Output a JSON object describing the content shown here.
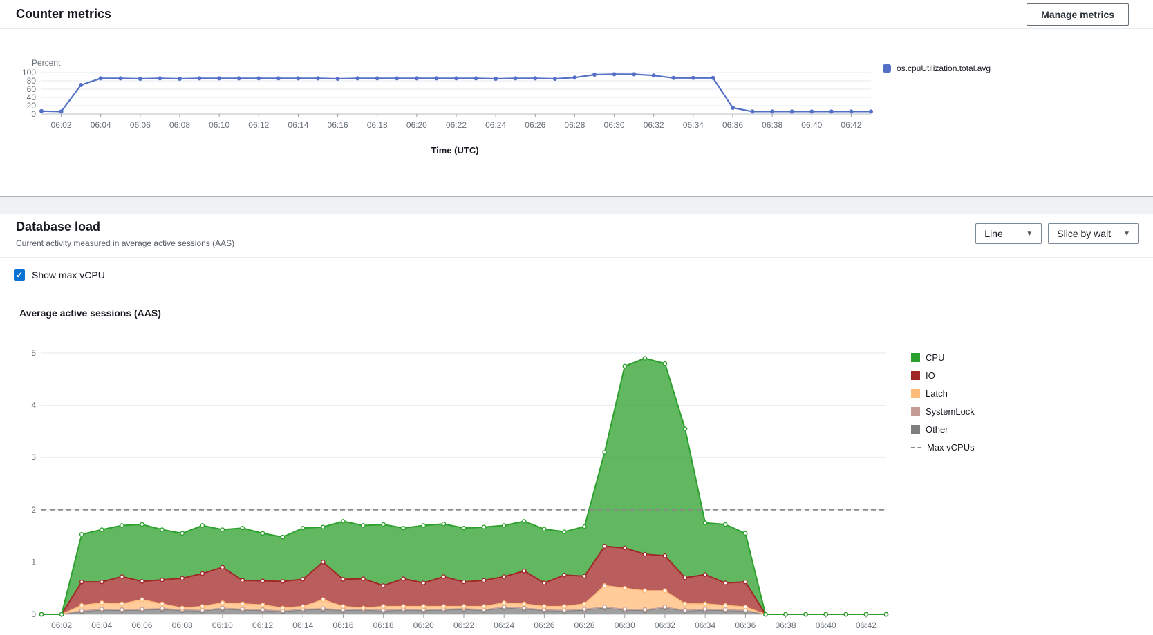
{
  "header": {
    "title": "Counter metrics",
    "manage_button": "Manage metrics"
  },
  "counter_chart": {
    "ylabel": "Percent",
    "xaxis_title": "Time (UTC)",
    "legend": [
      {
        "label": "os.cpuUtilization.total.avg",
        "color": "#5470c6"
      }
    ]
  },
  "database_load": {
    "title": "Database load",
    "subtitle": "Current activity measured in average active sessions (AAS)",
    "line_dropdown": "Line",
    "slice_dropdown": "Slice by wait",
    "show_max_vcpu_label": "Show max vCPU",
    "chart_title": "Average active sessions (AAS)"
  },
  "chart_data": [
    {
      "type": "line",
      "title": "Counter metrics",
      "ylabel": "Percent",
      "xlabel": "Time (UTC)",
      "ylim": [
        0,
        100
      ],
      "yticks": [
        0,
        20,
        40,
        60,
        80,
        100
      ],
      "grid": true,
      "legend_position": "right",
      "x": [
        "06:01",
        "06:02",
        "06:03",
        "06:04",
        "06:05",
        "06:06",
        "06:07",
        "06:08",
        "06:09",
        "06:10",
        "06:11",
        "06:12",
        "06:13",
        "06:14",
        "06:15",
        "06:16",
        "06:17",
        "06:18",
        "06:19",
        "06:20",
        "06:21",
        "06:22",
        "06:23",
        "06:24",
        "06:25",
        "06:26",
        "06:27",
        "06:28",
        "06:29",
        "06:30",
        "06:31",
        "06:32",
        "06:33",
        "06:34",
        "06:35",
        "06:36",
        "06:37",
        "06:38",
        "06:39",
        "06:40",
        "06:41",
        "06:42",
        "06:43"
      ],
      "xticks": [
        "06:02",
        "06:04",
        "06:06",
        "06:08",
        "06:10",
        "06:12",
        "06:14",
        "06:16",
        "06:18",
        "06:20",
        "06:22",
        "06:24",
        "06:26",
        "06:28",
        "06:30",
        "06:32",
        "06:34",
        "06:36",
        "06:38",
        "06:40",
        "06:42"
      ],
      "series": [
        {
          "name": "os.cpuUtilization.total.avg",
          "color": "#5470c6",
          "values": [
            7,
            6,
            70,
            86,
            86,
            85,
            86,
            85,
            86,
            86,
            86,
            86,
            86,
            86,
            86,
            85,
            86,
            86,
            86,
            86,
            86,
            86,
            86,
            85,
            86,
            86,
            85,
            88,
            95,
            96,
            96,
            93,
            87,
            87,
            87,
            15,
            6,
            6,
            6,
            6,
            6,
            6,
            6
          ]
        }
      ]
    },
    {
      "type": "area",
      "stacked": true,
      "title": "Average active sessions (AAS)",
      "ylabel": "",
      "xlabel": "",
      "ylim": [
        0,
        5
      ],
      "yticks": [
        0,
        1,
        2,
        3,
        4,
        5
      ],
      "grid": true,
      "legend_position": "right",
      "x": [
        "06:01",
        "06:02",
        "06:03",
        "06:04",
        "06:05",
        "06:06",
        "06:07",
        "06:08",
        "06:09",
        "06:10",
        "06:11",
        "06:12",
        "06:13",
        "06:14",
        "06:15",
        "06:16",
        "06:17",
        "06:18",
        "06:19",
        "06:20",
        "06:21",
        "06:22",
        "06:23",
        "06:24",
        "06:25",
        "06:26",
        "06:27",
        "06:28",
        "06:29",
        "06:30",
        "06:31",
        "06:32",
        "06:33",
        "06:34",
        "06:35",
        "06:36",
        "06:37",
        "06:38",
        "06:39",
        "06:40",
        "06:41",
        "06:42",
        "06:43"
      ],
      "xticks": [
        "06:02",
        "06:04",
        "06:06",
        "06:08",
        "06:10",
        "06:12",
        "06:14",
        "06:16",
        "06:18",
        "06:20",
        "06:22",
        "06:24",
        "06:26",
        "06:28",
        "06:30",
        "06:32",
        "06:34",
        "06:36",
        "06:38",
        "06:40",
        "06:42"
      ],
      "series": [
        {
          "name": "Other",
          "color": "#7f7f7f",
          "stroke_width": 1,
          "values": [
            0,
            0,
            0.05,
            0.08,
            0.07,
            0.08,
            0.09,
            0.07,
            0.06,
            0.1,
            0.08,
            0.07,
            0.05,
            0.08,
            0.09,
            0.07,
            0.08,
            0.06,
            0.08,
            0.07,
            0.08,
            0.09,
            0.07,
            0.12,
            0.1,
            0.07,
            0.06,
            0.08,
            0.12,
            0.08,
            0.07,
            0.12,
            0.06,
            0.08,
            0.07,
            0.06,
            0,
            0,
            0,
            0,
            0,
            0,
            0
          ]
        },
        {
          "name": "SystemLock",
          "color": "#c49c94",
          "stroke_width": 1,
          "values": [
            0,
            0,
            0.02,
            0.02,
            0.02,
            0.02,
            0.02,
            0.02,
            0.02,
            0.02,
            0.02,
            0.02,
            0.02,
            0.02,
            0.02,
            0.02,
            0.02,
            0.02,
            0.02,
            0.02,
            0.02,
            0.02,
            0.02,
            0.02,
            0.02,
            0.02,
            0.02,
            0.02,
            0.02,
            0.02,
            0.02,
            0.02,
            0.02,
            0.02,
            0.02,
            0.02,
            0,
            0,
            0,
            0,
            0,
            0,
            0
          ]
        },
        {
          "name": "Latch",
          "color": "#ffbb78",
          "stroke_width": 1.5,
          "values": [
            0,
            0,
            0.1,
            0.12,
            0.11,
            0.18,
            0.09,
            0.03,
            0.07,
            0.1,
            0.1,
            0.09,
            0.05,
            0.05,
            0.17,
            0.06,
            0.02,
            0.07,
            0.05,
            0.06,
            0.05,
            0.04,
            0.06,
            0.08,
            0.08,
            0.06,
            0.07,
            0.1,
            0.41,
            0.4,
            0.36,
            0.31,
            0.12,
            0.1,
            0.08,
            0.06,
            0,
            0,
            0,
            0,
            0,
            0,
            0
          ]
        },
        {
          "name": "IO",
          "color": "#a12727",
          "stroke_width": 2,
          "values": [
            0,
            0,
            0.45,
            0.4,
            0.52,
            0.35,
            0.46,
            0.57,
            0.63,
            0.68,
            0.45,
            0.46,
            0.51,
            0.52,
            0.72,
            0.52,
            0.56,
            0.4,
            0.53,
            0.45,
            0.57,
            0.47,
            0.5,
            0.5,
            0.63,
            0.45,
            0.6,
            0.53,
            0.75,
            0.77,
            0.7,
            0.67,
            0.5,
            0.56,
            0.43,
            0.48,
            0,
            0,
            0,
            0,
            0,
            0,
            0
          ]
        },
        {
          "name": "CPU",
          "color": "#2ca02c",
          "stroke_width": 2,
          "values": [
            0,
            0,
            0.91,
            1.0,
            0.98,
            1.09,
            0.96,
            0.86,
            0.92,
            0.72,
            1.0,
            0.91,
            0.85,
            0.98,
            0.67,
            1.11,
            1.02,
            1.17,
            0.97,
            1.1,
            1.01,
            1.03,
            1.02,
            0.98,
            0.95,
            1.03,
            0.83,
            0.95,
            1.8,
            3.48,
            3.75,
            3.68,
            2.85,
            0.99,
            1.12,
            0.93,
            0,
            0,
            0,
            0,
            0,
            0,
            0
          ]
        }
      ],
      "threshold": {
        "name": "Max vCPUs",
        "value": 2,
        "style": "dashed",
        "color": "#8a8a8a"
      },
      "legend": [
        {
          "label": "CPU",
          "color": "#2ca02c",
          "type": "box"
        },
        {
          "label": "IO",
          "color": "#a12727",
          "type": "box"
        },
        {
          "label": "Latch",
          "color": "#ffbb78",
          "type": "box"
        },
        {
          "label": "SystemLock",
          "color": "#c49c94",
          "type": "box"
        },
        {
          "label": "Other",
          "color": "#7f7f7f",
          "type": "box"
        },
        {
          "label": "Max vCPUs",
          "color": "#8a8a8a",
          "type": "dashed-line"
        }
      ]
    }
  ]
}
